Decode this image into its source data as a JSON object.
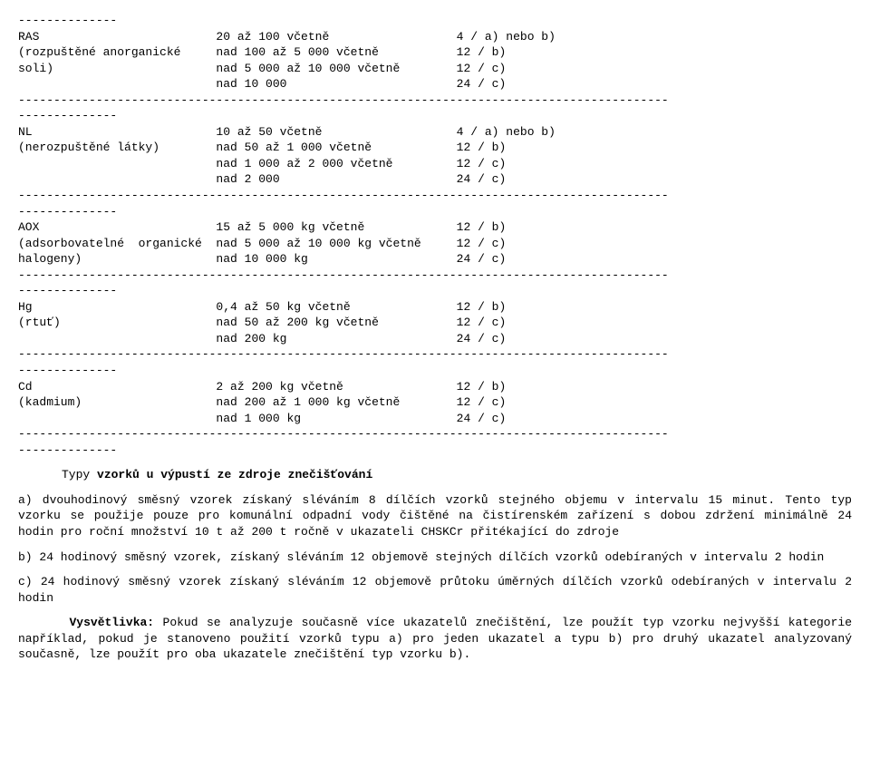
{
  "dash14": "--------------",
  "dash_full": "--------------------------------------------------------------------------------------------",
  "rows": {
    "ras": {
      "name1": "RAS",
      "name2": "(rozpuštěné anorganické",
      "name3": "soli)",
      "r1c2": "20 až 100 včetně",
      "r1c3": "4 / a) nebo b)",
      "r2c2": "nad 100 až 5 000 včetně",
      "r2c3": "12 / b)",
      "r3c2": "nad 5 000 až 10 000 včetně",
      "r3c3": "12 / c)",
      "r4c2": "nad 10 000",
      "r4c3": "24 / c)"
    },
    "nl": {
      "name1": "NL",
      "name2": "(nerozpuštěné látky)",
      "r1c2": "10 až 50 včetně",
      "r1c3": "4 / a) nebo b)",
      "r2c2": "nad 50 až 1 000 včetně",
      "r2c3": "12 / b)",
      "r3c2": "nad 1 000 až 2 000 včetně",
      "r3c3": "12 / c)",
      "r4c2": "nad 2 000",
      "r4c3": "24 / c)"
    },
    "aox": {
      "name1": "AOX",
      "name2": "(adsorbovatelné  organické",
      "name3": "halogeny)",
      "r1c2": "15 až 5 000 kg včetně",
      "r1c3": "12 / b)",
      "r2c2": "nad 5 000 až 10 000 kg včetně",
      "r2c3": "12 / c)",
      "r3c2": "nad 10 000 kg",
      "r3c3": "24 / c)"
    },
    "hg": {
      "name1": "Hg",
      "name2": "(rtuť)",
      "r1c2": "0,4 až 50 kg včetně",
      "r1c3": "12 / b)",
      "r2c2": "nad 50 až 200 kg včetně",
      "r2c3": "12 / c)",
      "r3c2": "nad 200 kg",
      "r3c3": "24 / c)"
    },
    "cd": {
      "name1": "Cd",
      "name2": "(kadmium)",
      "r1c2": "2 až 200 kg včetně",
      "r1c3": "12 / b)",
      "r2c2": "nad 200 až 1 000 kg včetně",
      "r2c3": "12 / c)",
      "r3c2": "nad 1 000 kg",
      "r3c3": "24 / c)"
    }
  },
  "section_title_prefix": "Typy ",
  "section_title_bold": "vzorků u výpustí ze zdroje znečišťování",
  "para_a": "a) dvouhodinový směsný vzorek získaný sléváním 8 dílčích vzorků stejného objemu v intervalu 15 minut. Tento typ vzorku se použije pouze pro komunální odpadní vody čištěné na čistírenském zařízení s dobou zdržení minimálně 24 hodin pro roční množství 10 t až 200 t ročně v ukazateli CHSKCr přitékající do zdroje",
  "para_b": "b) 24 hodinový směsný vzorek, získaný sléváním 12 objemově stejných dílčích vzorků odebíraných v intervalu 2 hodin",
  "para_c": "c) 24 hodinový směsný vzorek získaný sléváním 12 objemově průtoku úměrných dílčích vzorků odebíraných v intervalu 2 hodin",
  "note_label": "Vysvětlivka:",
  "note_text": " Pokud se analyzuje současně více ukazatelů znečištění, lze použít typ vzorku nejvyšší kategorie například, pokud je stanoveno použití vzorků typu a) pro jeden ukazatel a typu b) pro druhý ukazatel analyzovaný současně, lze použít pro oba ukazatele znečištění typ vzorku b).",
  "cols": {
    "c1": 28,
    "c2": 34
  }
}
